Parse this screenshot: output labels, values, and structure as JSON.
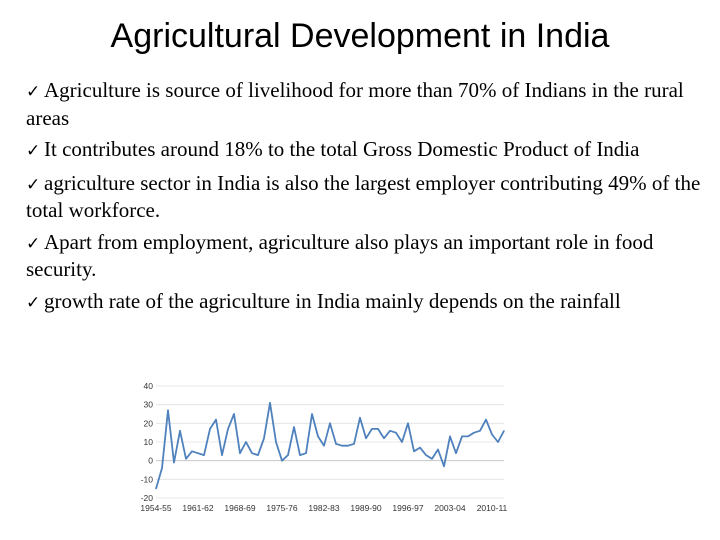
{
  "slide": {
    "title": "Agricultural Development in India",
    "check_icon": "check-icon",
    "bullets": [
      "Agriculture is source of livelihood for more than 70% of Indians in the rural areas",
      "It contributes around 18% to the total Gross Domestic Product of India",
      "agriculture sector in India is also the largest employer contributing 49% of the total workforce.",
      "Apart from employment, agriculture  also plays an important role in food security.",
      "growth rate of the agriculture in  India mainly depends on the rainfall"
    ]
  },
  "chart_data": {
    "type": "line",
    "title": "",
    "xlabel": "",
    "ylabel": "",
    "ylim": [
      -20,
      40
    ],
    "yticks": [
      -20,
      -10,
      0,
      10,
      20,
      30,
      40
    ],
    "xtick_labels": [
      "1954-55",
      "1961-62",
      "1968-69",
      "1975-76",
      "1982-83",
      "1989-90",
      "1996-97",
      "2003-04",
      "2010-11"
    ],
    "grid": true,
    "legend": "none",
    "line_color": "#4F81BD",
    "series": [
      {
        "values": [
          -15,
          -4,
          27,
          -1,
          16,
          1,
          5,
          4,
          3,
          17,
          22,
          3,
          17,
          25,
          4,
          10,
          4,
          3,
          12,
          31,
          10,
          0,
          3,
          18,
          3,
          4,
          25,
          13,
          8,
          20,
          9,
          8,
          8,
          9,
          23,
          12,
          17,
          17,
          12,
          16,
          15,
          10,
          20,
          5,
          7,
          3,
          1,
          6,
          -3,
          13,
          4,
          13,
          13,
          15,
          16,
          22,
          14,
          10,
          16
        ]
      }
    ]
  }
}
